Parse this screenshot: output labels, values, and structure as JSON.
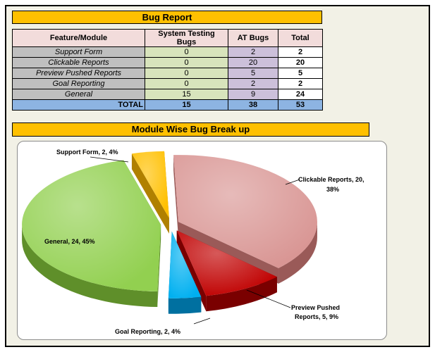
{
  "report": {
    "title": "Bug Report",
    "headers": [
      "Feature/Module",
      "System Testing Bugs",
      "AT Bugs",
      "Total"
    ],
    "rows": [
      {
        "feature": "Support Form",
        "system": "0",
        "at": "2",
        "total": "2"
      },
      {
        "feature": "Clickable Reports",
        "system": "0",
        "at": "20",
        "total": "20"
      },
      {
        "feature": "Preview Pushed Reports",
        "system": "0",
        "at": "5",
        "total": "5"
      },
      {
        "feature": "Goal Reporting",
        "system": "0",
        "at": "2",
        "total": "2"
      },
      {
        "feature": "General",
        "system": "15",
        "at": "9",
        "total": "24"
      }
    ],
    "totals": {
      "label": "TOTAL",
      "system": "15",
      "at": "38",
      "total": "53"
    }
  },
  "chart_data": {
    "type": "pie",
    "title": "Module Wise Bug Break up",
    "categories": [
      "Clickable Reports",
      "Preview Pushed Reports",
      "Goal Reporting",
      "General",
      "Support Form"
    ],
    "values": [
      20,
      5,
      2,
      24,
      2
    ],
    "percents": [
      38,
      9,
      4,
      45,
      4
    ],
    "labels": [
      "Clickable Reports, 20,",
      "38%",
      "Preview Pushed",
      "Reports, 5, 9%",
      "Goal Reporting, 2, 4%",
      "General, 24, 45%",
      "Support Form, 2, 4%"
    ],
    "colors": [
      "#d99694",
      "#c00000",
      "#00b0f0",
      "#92d050",
      "#ffc000"
    ],
    "side_colors": [
      "#9a5a58",
      "#7a0000",
      "#0070a0",
      "#5f8f2a",
      "#b08000"
    ],
    "legend": "none",
    "exploded": true
  }
}
